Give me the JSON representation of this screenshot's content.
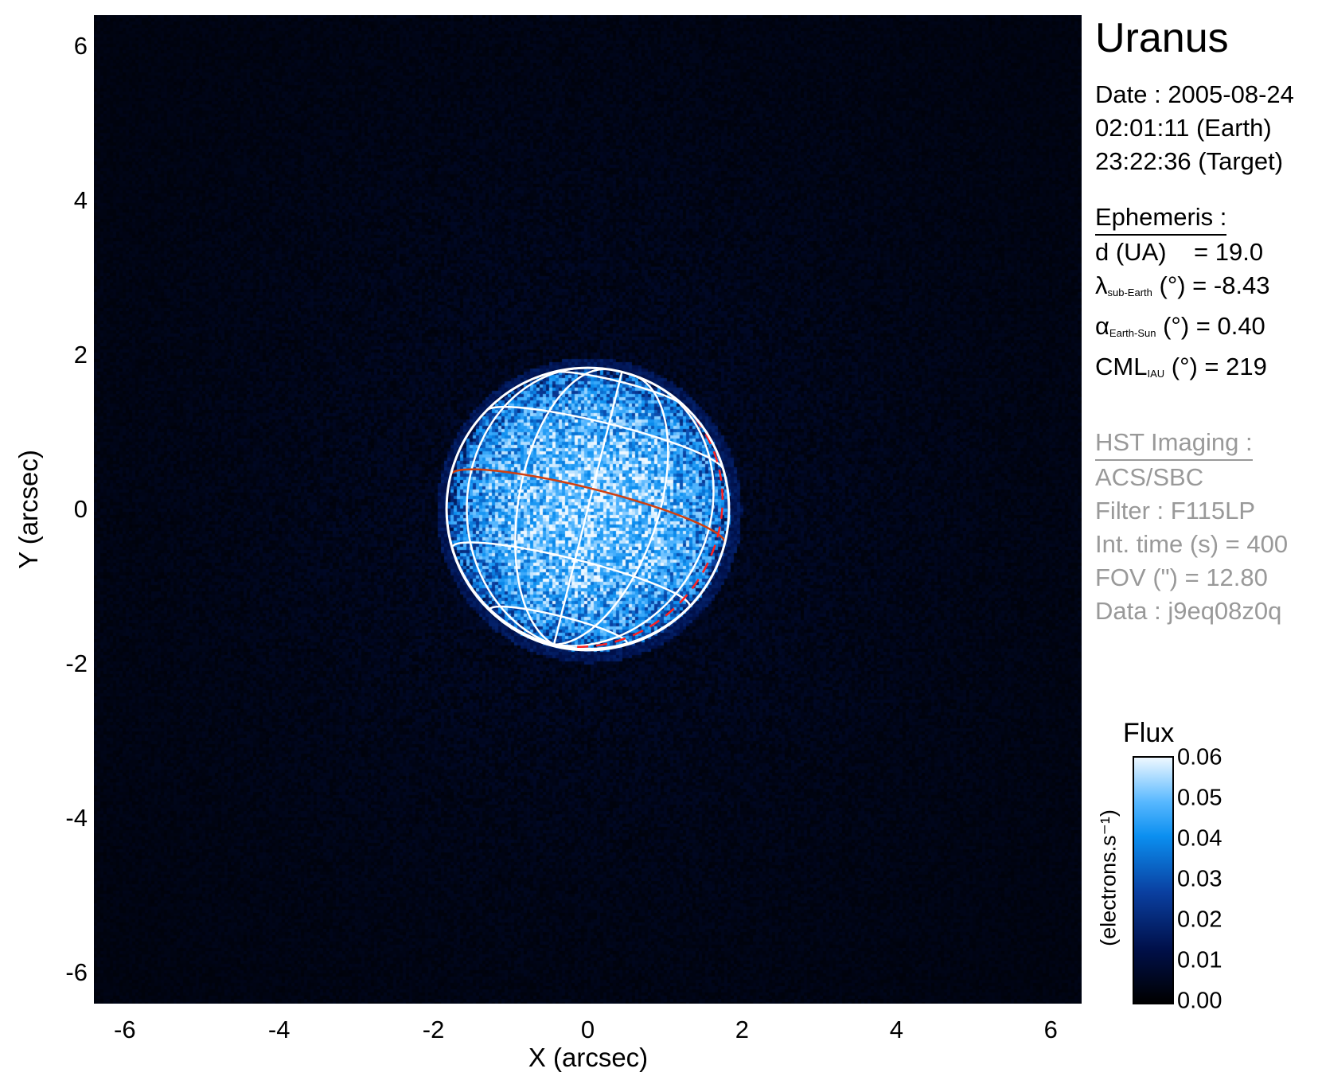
{
  "chart_data": {
    "type": "heatmap",
    "title": "Uranus",
    "xlabel": "X (arcsec)",
    "ylabel": "Y (arcsec)",
    "xlim": [
      -6.4,
      6.4
    ],
    "ylim": [
      -6.4,
      6.4
    ],
    "xticks": [
      "-6",
      "-4",
      "-2",
      "0",
      "2",
      "4",
      "6"
    ],
    "yticks": [
      "6",
      "4",
      "2",
      "0",
      "-2",
      "-4",
      "-6"
    ],
    "planet": {
      "center": [
        0,
        0
      ],
      "radius_arcsec": 1.83,
      "equator_color": "#d04010",
      "grid_color": "#ffffff",
      "sub_earth_lat_deg": -8.43
    },
    "colorbar": {
      "title": "Flux",
      "unit": "(electrons.s⁻¹)",
      "range": [
        0.0,
        0.06
      ],
      "ticks": [
        "0.06",
        "0.05",
        "0.04",
        "0.03",
        "0.02",
        "0.01",
        "0.00"
      ],
      "colormap": [
        "#000000",
        "#00104a",
        "#0a3fa0",
        "#0b8ff0",
        "#58b8ff",
        "#eef8ff"
      ]
    }
  },
  "info": {
    "date": "Date : 2005-08-24",
    "earth_time": "02:01:11 (Earth)",
    "target_time": "23:22:36 (Target)",
    "ephemeris_header": "Ephemeris :",
    "d_label": "d (UA)",
    "d_value": "= 19.0",
    "lambda_sym": "λ",
    "lambda_sub": "sub-Earth",
    "lambda_value": "(°) = -8.43",
    "alpha_sym": "α",
    "alpha_sub": "Earth-Sun",
    "alpha_value": "(°) = 0.40",
    "cml_sym": "CML",
    "cml_sub": "IAU",
    "cml_value": "(°) = 219",
    "hst_header": "HST Imaging :",
    "instrument": "ACS/SBC",
    "filter": "Filter : F115LP",
    "int_time": "Int. time (s) = 400",
    "fov": "FOV (\") = 12.80",
    "data": "Data : j9eq08z0q"
  }
}
